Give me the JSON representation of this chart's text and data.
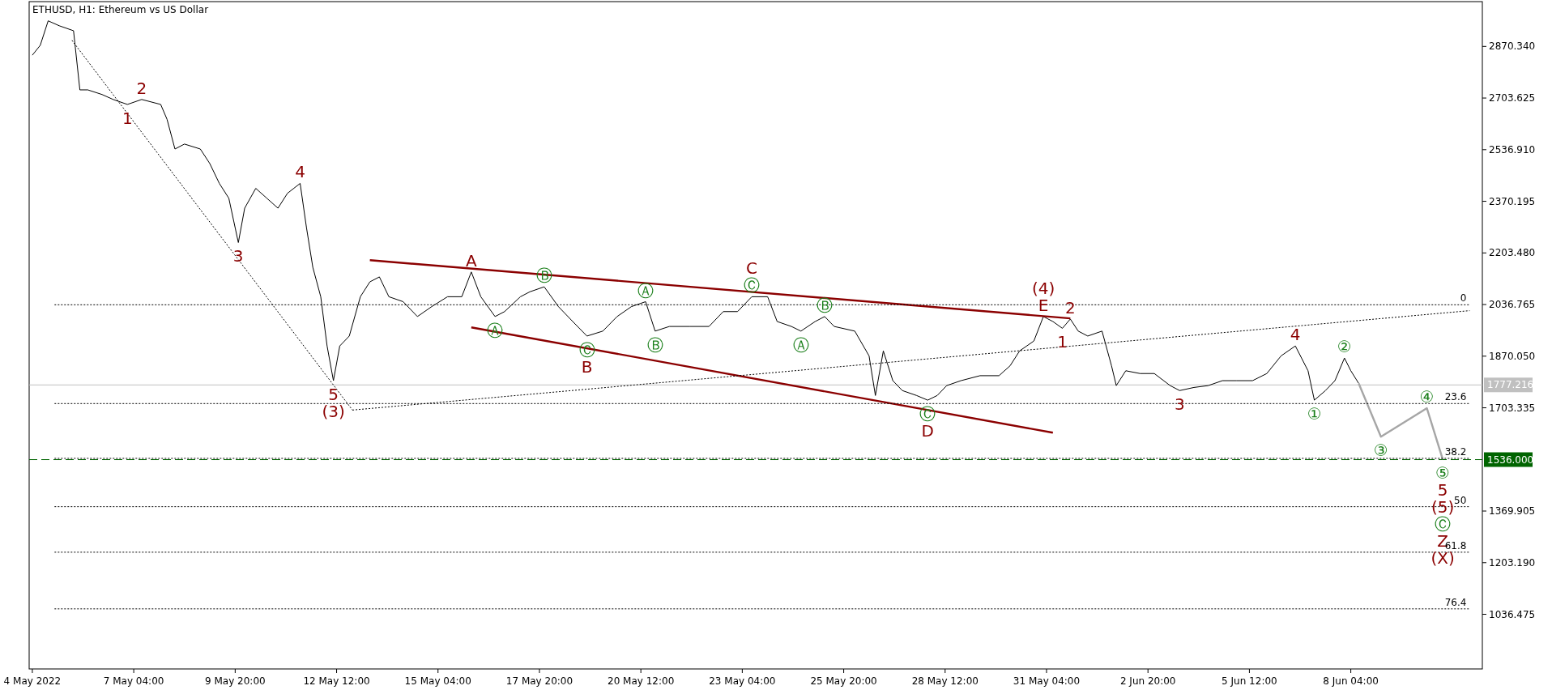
{
  "chart_data": {
    "type": "line",
    "title": "ETHUSD, H1:  Ethereum vs US Dollar",
    "xlim": [
      "2022-05-04T10:00",
      "2022-06-11T15:00"
    ],
    "ylim": [
      860,
      3015
    ],
    "xticks": [
      {
        "value": "2022-05-04T12:00",
        "label": "4 May 2022"
      },
      {
        "value": "2022-05-07T04:00",
        "label": "7 May 04:00"
      },
      {
        "value": "2022-05-09T20:00",
        "label": "9 May 20:00"
      },
      {
        "value": "2022-05-12T12:00",
        "label": "12 May 12:00"
      },
      {
        "value": "2022-05-15T04:00",
        "label": "15 May 04:00"
      },
      {
        "value": "2022-05-17T20:00",
        "label": "17 May 20:00"
      },
      {
        "value": "2022-05-20T12:00",
        "label": "20 May 12:00"
      },
      {
        "value": "2022-05-23T04:00",
        "label": "23 May 04:00"
      },
      {
        "value": "2022-05-25T20:00",
        "label": "25 May 20:00"
      },
      {
        "value": "2022-05-28T12:00",
        "label": "28 May 12:00"
      },
      {
        "value": "2022-05-31T04:00",
        "label": "31 May 04:00"
      },
      {
        "value": "2022-06-02T20:00",
        "label": "2 Jun 20:00"
      },
      {
        "value": "2022-06-05T12:00",
        "label": "5 Jun 12:00"
      },
      {
        "value": "2022-06-08T04:00",
        "label": "8 Jun 04:00"
      }
    ],
    "yticks": [
      {
        "value": 1036.475,
        "label": "1036.475"
      },
      {
        "value": 1203.19,
        "label": "1203.190"
      },
      {
        "value": 1369.905,
        "label": "1369.905"
      },
      {
        "value": 1703.335,
        "label": "1703.335"
      },
      {
        "value": 1870.05,
        "label": "1870.050"
      },
      {
        "value": 2036.765,
        "label": "2036.765"
      },
      {
        "value": 2203.48,
        "label": "2203.480"
      },
      {
        "value": 2370.195,
        "label": "2370.195"
      },
      {
        "value": 2536.91,
        "label": "2536.910"
      },
      {
        "value": 2703.625,
        "label": "2703.625"
      },
      {
        "value": 2870.34,
        "label": "2870.340"
      }
    ],
    "series": [
      {
        "color": "#000000",
        "line_style": "solid",
        "x": [
          "2022-05-04T12:00",
          "2022-05-04T17:00",
          "2022-05-04T22:00",
          "2022-05-05T05:00",
          "2022-05-05T14:00",
          "2022-05-05T18:00",
          "2022-05-05T23:00",
          "2022-05-06T08:00",
          "2022-05-06T15:00",
          "2022-05-07T00:00",
          "2022-05-07T09:00",
          "2022-05-07T21:00",
          "2022-05-08T01:00",
          "2022-05-08T06:00",
          "2022-05-08T12:00",
          "2022-05-08T22:00",
          "2022-05-09T04:00",
          "2022-05-09T10:00",
          "2022-05-09T16:00",
          "2022-05-09T22:00",
          "2022-05-10T02:00",
          "2022-05-10T09:00",
          "2022-05-10T16:00",
          "2022-05-10T23:00",
          "2022-05-11T05:00",
          "2022-05-11T13:00",
          "2022-05-11T17:00",
          "2022-05-11T21:00",
          "2022-05-12T02:00",
          "2022-05-12T06:00",
          "2022-05-12T10:00",
          "2022-05-12T14:00",
          "2022-05-12T20:00",
          "2022-05-13T03:00",
          "2022-05-13T09:00",
          "2022-05-13T15:00",
          "2022-05-13T21:00",
          "2022-05-14T06:00",
          "2022-05-14T15:00",
          "2022-05-15T00:00",
          "2022-05-15T10:00",
          "2022-05-15T19:00",
          "2022-05-16T01:00",
          "2022-05-16T07:00",
          "2022-05-16T16:00",
          "2022-05-16T22:00",
          "2022-05-17T08:00",
          "2022-05-17T14:00",
          "2022-05-17T23:00",
          "2022-05-18T08:00",
          "2022-05-18T17:00",
          "2022-05-19T02:00",
          "2022-05-19T12:00",
          "2022-05-19T21:00",
          "2022-05-20T06:00",
          "2022-05-20T15:00",
          "2022-05-20T21:00",
          "2022-05-21T06:00",
          "2022-05-21T19:00",
          "2022-05-22T07:00",
          "2022-05-22T16:00",
          "2022-05-23T01:00",
          "2022-05-23T10:00",
          "2022-05-23T20:00",
          "2022-05-24T02:00",
          "2022-05-24T11:00",
          "2022-05-24T17:00",
          "2022-05-25T02:00",
          "2022-05-25T08:00",
          "2022-05-25T14:00",
          "2022-05-26T03:00",
          "2022-05-26T12:00",
          "2022-05-26T16:00",
          "2022-05-26T21:00",
          "2022-05-27T03:00",
          "2022-05-27T09:00",
          "2022-05-27T18:00",
          "2022-05-28T01:00",
          "2022-05-28T07:00",
          "2022-05-28T13:00",
          "2022-05-28T22:00",
          "2022-05-29T10:00",
          "2022-05-29T22:00",
          "2022-05-30T05:00",
          "2022-05-30T11:00",
          "2022-05-30T20:00",
          "2022-05-31T02:00",
          "2022-05-31T08:00",
          "2022-05-31T14:00",
          "2022-05-31T19:00",
          "2022-06-01T00:00",
          "2022-06-01T06:00",
          "2022-06-01T15:00",
          "2022-06-01T21:00",
          "2022-06-02T00:00",
          "2022-06-02T06:00",
          "2022-06-02T15:00",
          "2022-06-03T00:00",
          "2022-06-03T10:00",
          "2022-06-03T16:00",
          "2022-06-04T01:00",
          "2022-06-04T10:00",
          "2022-06-04T19:00",
          "2022-06-05T04:00",
          "2022-06-05T14:00",
          "2022-06-05T23:00",
          "2022-06-06T08:00",
          "2022-06-06T17:00",
          "2022-06-07T01:00",
          "2022-06-07T05:00",
          "2022-06-07T12:00",
          "2022-06-07T18:00",
          "2022-06-08T00:00",
          "2022-06-08T04:00",
          "2022-06-08T09:00"
        ],
        "values": [
          2842,
          2874,
          2953,
          2937,
          2921,
          2730,
          2730,
          2715,
          2699,
          2683,
          2699,
          2683,
          2635,
          2539,
          2555,
          2539,
          2492,
          2428,
          2380,
          2237,
          2348,
          2412,
          2380,
          2348,
          2396,
          2428,
          2285,
          2157,
          2062,
          1903,
          1791,
          1903,
          1935,
          2062,
          2110,
          2126,
          2062,
          2046,
          1998,
          2030,
          2062,
          2062,
          2142,
          2062,
          1998,
          2014,
          2062,
          2078,
          2094,
          2030,
          1982,
          1935,
          1951,
          1998,
          2030,
          2046,
          1951,
          1966,
          1966,
          1966,
          2014,
          2014,
          2062,
          2062,
          1982,
          1966,
          1951,
          1982,
          1998,
          1966,
          1951,
          1871,
          1743,
          1887,
          1791,
          1759,
          1743,
          1728,
          1743,
          1775,
          1791,
          1807,
          1807,
          1839,
          1887,
          1919,
          1998,
          1982,
          1960,
          1990,
          1951,
          1935,
          1951,
          1839,
          1775,
          1823,
          1814,
          1814,
          1775,
          1759,
          1769,
          1775,
          1791,
          1791,
          1791,
          1814,
          1871,
          1903,
          1823,
          1728,
          1759,
          1791,
          1864,
          1823,
          1782
        ]
      },
      {
        "color": "#8b0000",
        "line_style": "solid",
        "x": [
          "2022-05-13T09:00",
          "2022-05-31T19:00"
        ],
        "values": [
          2180,
          1992
        ]
      },
      {
        "color": "#8b0000",
        "line_style": "solid",
        "x": [
          "2022-05-16T01:00",
          "2022-05-31T08:00"
        ],
        "values": [
          1963,
          1623
        ]
      },
      {
        "color": "#000000",
        "line_style": "dotted",
        "x": [
          "2022-05-05T13:00",
          "2022-05-12T22:00"
        ],
        "values": [
          2890,
          1696
        ]
      },
      {
        "color": "#000000",
        "line_style": "dotted",
        "x": [
          "2022-05-12T22:00",
          "2022-06-11T07:00"
        ],
        "values": [
          1696,
          2017
        ]
      },
      {
        "color": "#a6a6a6",
        "line_style": "solid",
        "x": [
          "2022-06-08T09:00",
          "2022-06-08T23:00",
          "2022-06-10T04:00",
          "2022-06-10T14:00"
        ],
        "values": [
          1782,
          1610,
          1702,
          1537
        ]
      },
      {
        "color": "#000000",
        "line_style": "dotted",
        "x": [
          "2022-05-05T02:00",
          "2022-06-11T07:00"
        ],
        "values": [
          2036,
          2036
        ]
      },
      {
        "color": "#000000",
        "line_style": "dotted",
        "x": [
          "2022-05-05T02:00",
          "2022-06-11T07:00"
        ],
        "values": [
          1717,
          1717
        ]
      },
      {
        "color": "#000000",
        "line_style": "dotted",
        "x": [
          "2022-05-05T02:00",
          "2022-06-11T07:00"
        ],
        "values": [
          1540,
          1540
        ]
      },
      {
        "color": "#000000",
        "line_style": "dotted",
        "x": [
          "2022-05-05T02:00",
          "2022-06-11T07:00"
        ],
        "values": [
          1384,
          1384
        ]
      },
      {
        "color": "#000000",
        "line_style": "dotted",
        "x": [
          "2022-05-05T02:00",
          "2022-06-11T07:00"
        ],
        "values": [
          1237,
          1237
        ]
      },
      {
        "color": "#000000",
        "line_style": "dotted",
        "x": [
          "2022-05-05T02:00",
          "2022-06-11T07:00"
        ],
        "values": [
          1054,
          1054
        ]
      }
    ],
    "ref_lines": [
      {
        "axis": "y",
        "value": 1777.216,
        "label": "1777.216",
        "color": "#c0c0c0",
        "line_style": "solid"
      },
      {
        "axis": "y",
        "value": 1536,
        "label": "1536.000",
        "color": "#006400",
        "line_style": "dashed"
      }
    ],
    "annotations": [
      {
        "text": "1",
        "x": "2022-05-07T00:00",
        "y": 2683
      },
      {
        "text": "2",
        "x": "2022-05-07T09:00",
        "y": 2699
      },
      {
        "text": "3",
        "x": "2022-05-09T22:00",
        "y": 2237
      },
      {
        "text": "4",
        "x": "2022-05-11T13:00",
        "y": 2428
      },
      {
        "text": "5",
        "x": "2022-05-12T10:00",
        "y": 1791
      },
      {
        "text": "(3)",
        "x": "2022-05-12T10:00",
        "y": 1791
      },
      {
        "text": "A",
        "x": "2022-05-16T01:00",
        "y": 2142
      },
      {
        "text": "Ⓐ",
        "x": "2022-05-16T16:00",
        "y": 1998
      },
      {
        "text": "Ⓑ",
        "x": "2022-05-17T23:00",
        "y": 2094
      },
      {
        "text": "Ⓒ",
        "x": "2022-05-19T02:00",
        "y": 1935
      },
      {
        "text": "B",
        "x": "2022-05-19T02:00",
        "y": 1935
      },
      {
        "text": "Ⓐ",
        "x": "2022-05-20T15:00",
        "y": 2046
      },
      {
        "text": "Ⓑ",
        "x": "2022-05-20T21:00",
        "y": 1951
      },
      {
        "text": "Ⓒ",
        "x": "2022-05-23T10:00",
        "y": 2062
      },
      {
        "text": "C",
        "x": "2022-05-23T10:00",
        "y": 2062
      },
      {
        "text": "Ⓐ",
        "x": "2022-05-24T17:00",
        "y": 1951
      },
      {
        "text": "Ⓑ",
        "x": "2022-05-25T08:00",
        "y": 1998
      },
      {
        "text": "Ⓒ",
        "x": "2022-05-28T01:00",
        "y": 1728
      },
      {
        "text": "D",
        "x": "2022-05-28T01:00",
        "y": 1728
      },
      {
        "text": "E",
        "x": "2022-05-31T02:00",
        "y": 1998
      },
      {
        "text": "(4)",
        "x": "2022-05-31T02:00",
        "y": 1998
      },
      {
        "text": "1",
        "x": "2022-05-31T14:00",
        "y": 1960
      },
      {
        "text": "2",
        "x": "2022-05-31T19:00",
        "y": 1990
      },
      {
        "text": "3",
        "x": "2022-06-03T16:00",
        "y": 1759
      },
      {
        "text": "4",
        "x": "2022-06-06T17:00",
        "y": 1903
      },
      {
        "text": "①",
        "x": "2022-06-07T05:00",
        "y": 1728
      },
      {
        "text": "②",
        "x": "2022-06-08T00:00",
        "y": 1864
      },
      {
        "text": "③",
        "x": "2022-06-08T23:00",
        "y": 1610
      },
      {
        "text": "④",
        "x": "2022-06-10T04:00",
        "y": 1702
      },
      {
        "text": "⑤",
        "x": "2022-06-10T14:00",
        "y": 1537
      },
      {
        "text": "5",
        "x": "2022-06-10T14:00",
        "y": 1537
      },
      {
        "text": "(5)",
        "x": "2022-06-10T14:00",
        "y": 1537
      },
      "Ⓒ",
      "Z",
      "(X)",
      {
        "text": "0",
        "x": "2022-06-11T07:00",
        "y": 2036
      },
      {
        "text": "23.6",
        "x": "2022-06-11T07:00",
        "y": 1717
      },
      {
        "text": "38.2",
        "x": "2022-06-11T07:00",
        "y": 1540
      },
      {
        "text": "50",
        "x": "2022-06-11T07:00",
        "y": 1384
      },
      {
        "text": "61.8",
        "x": "2022-06-11T07:00",
        "y": 1237
      },
      {
        "text": "76.4",
        "x": "2022-06-11T07:00",
        "y": 1054
      }
    ]
  }
}
